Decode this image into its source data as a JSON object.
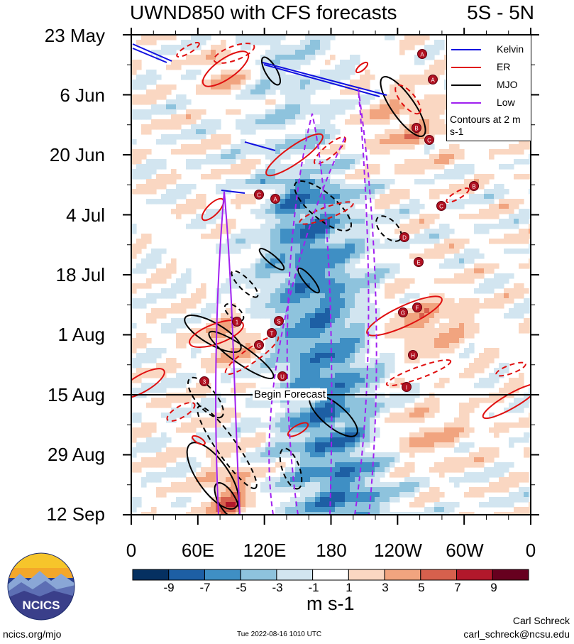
{
  "header": {
    "title": "UWND850 with CFS forecasts",
    "region": "5S - 5N"
  },
  "chart_data": {
    "type": "heatmap",
    "title": "UWND850 with CFS forecasts",
    "subtitle": "5S - 5N",
    "y_ticks": [
      "23 May",
      "6 Jun",
      "20 Jun",
      "4 Jul",
      "18 Jul",
      "1 Aug",
      "15 Aug",
      "29 Aug",
      "12 Sep"
    ],
    "x_ticks": [
      "0",
      "60E",
      "120E",
      "180",
      "120W",
      "60W",
      "0"
    ],
    "x_range": [
      0,
      360
    ],
    "y_range": [
      "23 May",
      "12 Sep"
    ],
    "legend": {
      "placement": "top-right",
      "entries": [
        {
          "name": "Kelvin",
          "color": "#1010e0"
        },
        {
          "name": "ER",
          "color": "#e01010"
        },
        {
          "name": "MJO",
          "color": "#000000"
        },
        {
          "name": "Low",
          "color": "#a020f0"
        }
      ],
      "note": "Contours at 2 m s-1"
    },
    "annotations": [
      "Begin Forecast"
    ],
    "colorbar": {
      "ticks": [
        "-9",
        "-7",
        "-5",
        "-3",
        "-1",
        "1",
        "3",
        "5",
        "7",
        "9"
      ],
      "units": "m s-1",
      "colors": [
        "#053061",
        "#1d5fa4",
        "#3f8fc4",
        "#8ec3dd",
        "#d2e5f0",
        "#ffffff",
        "#fad7c2",
        "#f1a47f",
        "#d6604d",
        "#b2182b",
        "#67001f"
      ]
    },
    "typhoon_markers": [
      "A",
      "A",
      "B",
      "C",
      "A",
      "C",
      "B",
      "C",
      "D",
      "E",
      "1",
      "S",
      "T",
      "G",
      "F",
      "G",
      "H",
      "U",
      "3",
      "I"
    ]
  },
  "footer": {
    "logo_text": "NCICS",
    "url": "ncics.org/mjo",
    "timestamp": "Tue 2022-08-16 1010 UTC",
    "author": "Carl Schreck",
    "email": "carl_schreck@ncsu.edu"
  }
}
